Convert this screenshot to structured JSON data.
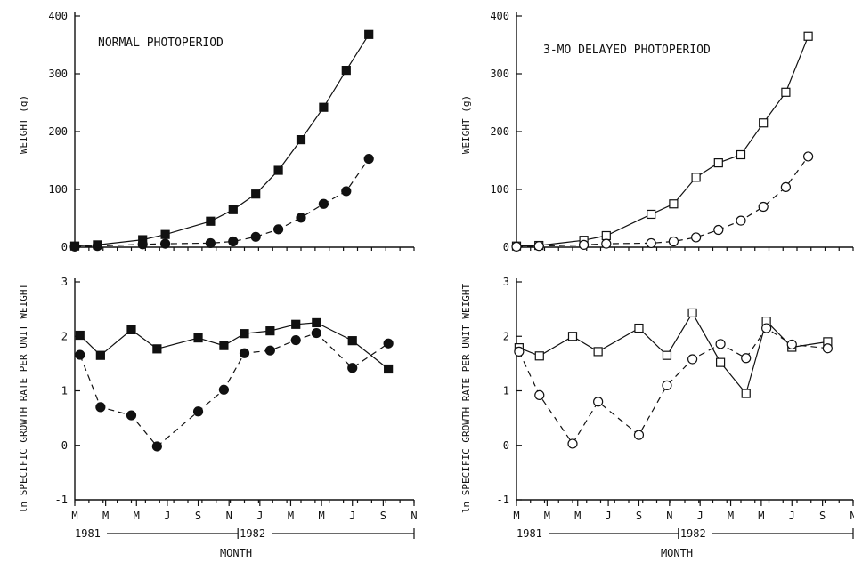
{
  "chart_data": [
    {
      "id": "tl",
      "type": "line",
      "title": "NORMAL PHOTOPERIOD",
      "ylabel": "WEIGHT (g)",
      "ylim": [
        0,
        400
      ],
      "yticks": [
        "0",
        "100",
        "200",
        "300",
        "400"
      ],
      "series": [
        {
          "marker": "filled-square",
          "style": "solid",
          "x": [
            0,
            0.5,
            1.5,
            2,
            3,
            3.5,
            4,
            4.5,
            5,
            5.5,
            6,
            6.5,
            7.3
          ],
          "y": [
            2,
            4,
            13,
            22,
            45,
            65,
            92,
            133,
            186,
            242,
            306,
            368,
            368
          ]
        },
        {
          "marker": "filled-circle",
          "style": "dashed",
          "x": [
            0,
            0.5,
            1.5,
            2,
            3,
            3.5,
            4,
            4.5,
            5,
            5.5,
            6,
            6.5,
            7.3
          ],
          "y": [
            1,
            2,
            5,
            6,
            7,
            10,
            18,
            31,
            51,
            75,
            97,
            153,
            153
          ]
        }
      ]
    },
    {
      "id": "tr",
      "type": "line",
      "title": "3-MO DELAYED PHOTOPERIOD",
      "ylabel": "WEIGHT (g)",
      "ylim": [
        0,
        400
      ],
      "yticks": [
        "0",
        "100",
        "200",
        "300",
        "400"
      ],
      "series": [
        {
          "marker": "open-square",
          "style": "solid",
          "x": [
            0,
            0.5,
            1.5,
            2,
            3,
            3.5,
            4,
            4.5,
            5,
            5.5,
            6,
            6.5,
            7.3
          ],
          "y": [
            2,
            3,
            12,
            20,
            57,
            75,
            121,
            146,
            160,
            215,
            268,
            365,
            365
          ]
        },
        {
          "marker": "open-circle",
          "style": "dashed",
          "x": [
            0,
            0.5,
            1.5,
            2,
            3,
            3.5,
            4,
            4.5,
            5,
            5.5,
            6,
            6.5,
            7.3
          ],
          "y": [
            1,
            2,
            4,
            6,
            7,
            10,
            17,
            30,
            46,
            70,
            104,
            157,
            157
          ]
        }
      ]
    },
    {
      "id": "bl",
      "type": "line",
      "ylabel": "ln SPECIFIC GROWTH RATE PER UNIT WEIGHT",
      "ylim": [
        -1,
        3
      ],
      "yticks": [
        "-1",
        "0",
        "1",
        "2",
        "3"
      ],
      "xlabel": "MONTH",
      "xticks": [
        "M",
        "M",
        "M",
        "J",
        "S",
        "N",
        "J",
        "M",
        "M",
        "J",
        "S",
        "N"
      ],
      "years": [
        "1981",
        "1982"
      ],
      "series": [
        {
          "marker": "filled-square",
          "style": "solid",
          "x": [
            0.1,
            0.5,
            1.1,
            1.6,
            2.4,
            2.9,
            3.3,
            3.8,
            4.3,
            4.7,
            5.4,
            6.1
          ],
          "y": [
            2.02,
            1.65,
            2.12,
            1.77,
            1.97,
            1.83,
            2.05,
            2.1,
            2.22,
            2.25,
            1.92,
            1.4
          ]
        },
        {
          "marker": "filled-circle",
          "style": "dashed",
          "x": [
            0.1,
            0.5,
            1.1,
            1.6,
            2.4,
            2.9,
            3.3,
            3.8,
            4.3,
            4.7,
            5.4,
            6.1
          ],
          "y": [
            1.66,
            0.7,
            0.55,
            -0.02,
            0.62,
            1.02,
            1.69,
            1.74,
            1.93,
            2.06,
            1.42,
            1.87
          ]
        }
      ]
    },
    {
      "id": "br",
      "type": "line",
      "ylabel": "ln SPECIFIC GROWTH RATE PER UNIT WEIGHT",
      "ylim": [
        -1,
        3
      ],
      "yticks": [
        "-1",
        "0",
        "1",
        "2",
        "3"
      ],
      "xlabel": "MONTH",
      "xticks": [
        "M",
        "M",
        "M",
        "J",
        "S",
        "N",
        "J",
        "M",
        "M",
        "J",
        "S",
        "N"
      ],
      "years": [
        "1981",
        "1982"
      ],
      "series": [
        {
          "marker": "open-square",
          "style": "solid",
          "x": [
            0.05,
            0.45,
            1.1,
            1.6,
            2.4,
            2.95,
            3.45,
            4.0,
            4.5,
            4.9,
            5.4,
            6.1
          ],
          "y": [
            1.79,
            1.64,
            2.0,
            1.72,
            2.15,
            1.65,
            2.43,
            1.52,
            0.95,
            2.28,
            1.8,
            1.9
          ]
        },
        {
          "marker": "open-circle",
          "style": "dashed",
          "x": [
            0.05,
            0.45,
            1.1,
            1.6,
            2.4,
            2.95,
            3.45,
            4.0,
            4.5,
            4.9,
            5.4,
            6.1
          ],
          "y": [
            1.72,
            0.92,
            0.03,
            0.8,
            0.19,
            1.1,
            1.58,
            1.86,
            1.6,
            2.15,
            1.85,
            1.78
          ]
        }
      ]
    }
  ]
}
